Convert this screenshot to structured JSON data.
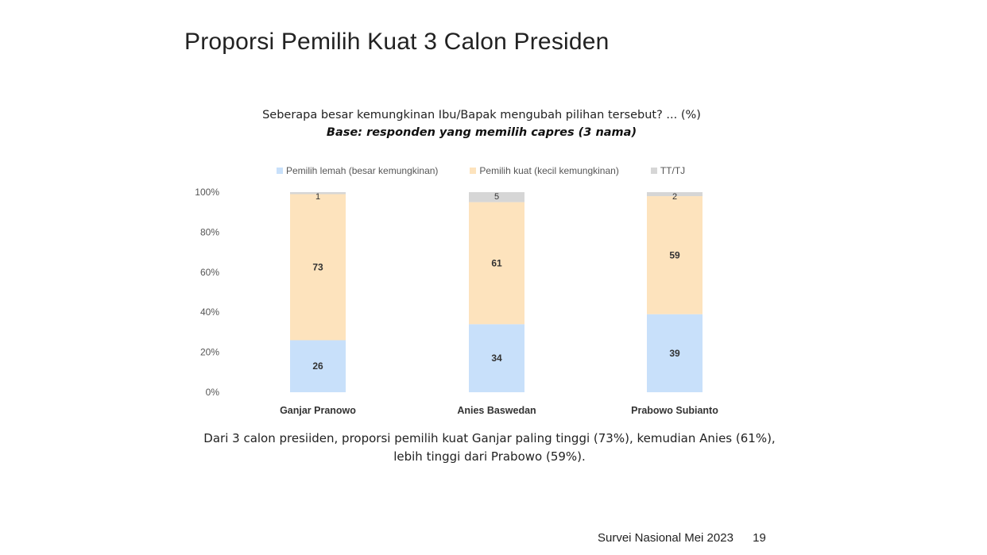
{
  "slide": {
    "title": "Proporsi Pemilih Kuat 3  Calon Presiden",
    "caption_line1": "Dari 3 calon presiiden, proporsi pemilih kuat Ganjar paling tinggi (73%), kemudian Anies (61%),",
    "caption_line2": "lebih tinggi dari Prabowo (59%).",
    "footer_label": "Survei Nasional Mei 2023",
    "page_number": "19"
  },
  "chart_data": {
    "type": "bar",
    "stacked": true,
    "title": "Seberapa besar kemungkinan Ibu/Bapak mengubah pilihan tersebut? ... (%)",
    "subtitle": "Base: responden yang memilih capres (3 nama)",
    "categories": [
      "Ganjar Pranowo",
      "Anies Baswedan",
      "Prabowo Subianto"
    ],
    "series": [
      {
        "name": "Pemilih lemah (besar kemungkinan)",
        "values": [
          26,
          34,
          39
        ],
        "color": "#c8e0fa"
      },
      {
        "name": "Pemilih kuat (kecil kemungkinan)",
        "values": [
          73,
          61,
          59
        ],
        "color": "#fde3bd"
      },
      {
        "name": "TT/TJ",
        "values": [
          1,
          5,
          2
        ],
        "color": "#d6d6d6"
      }
    ],
    "ylim": [
      0,
      100
    ],
    "yticks": [
      "0%",
      "20%",
      "40%",
      "60%",
      "80%",
      "100%"
    ],
    "legend_position": "top",
    "grid": false
  }
}
